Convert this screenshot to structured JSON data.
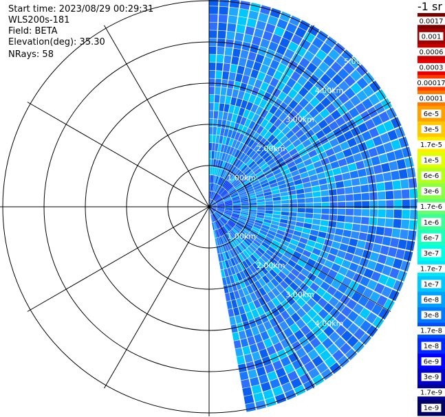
{
  "info": {
    "start_time": "Start time: 2023/08/29 00:29:31",
    "instrument": "WLS200s-181",
    "field": "Field: BETA",
    "elevation": "Elevation(deg): 35.30",
    "nrays": "NRays: 58"
  },
  "colorbar": {
    "unit": "-1 sr",
    "labels": [
      "0.0017",
      "0.001",
      "0.0006",
      "0.0003",
      "0.00017",
      "0.0001",
      "6e-5",
      "3e-5",
      "1.7e-5",
      "1e-5",
      "6e-6",
      "3e-6",
      "1.7e-6",
      "1e-6",
      "6e-7",
      "3e-7",
      "1.7e-7",
      "1e-7",
      "6e-8",
      "3e-8",
      "1.7e-8",
      "1e-8",
      "6e-9",
      "3e-9",
      "1.7e-9",
      "1e-9"
    ],
    "colors": [
      "#7a0000",
      "#a00000",
      "#c80000",
      "#e60000",
      "#ff3c00",
      "#ff7800",
      "#ffa000",
      "#ffc800",
      "#ffee00",
      "#e0ff00",
      "#b4ff1e",
      "#8cff46",
      "#64ff6e",
      "#3cff96",
      "#1effbe",
      "#00ffe6",
      "#00e6ff",
      "#00c8ff",
      "#00a0ff",
      "#0078ff",
      "#0050ff",
      "#0028ff",
      "#0000ff",
      "#0000c8",
      "#000096",
      "#000064"
    ]
  },
  "chart_data": {
    "type": "heatmap",
    "projection": "polar PPI",
    "field": "BETA",
    "unit": "-1 sr",
    "ring_labels": [
      "1.00km",
      "2.00km",
      "3.00km",
      "4.00km",
      "5.00km"
    ],
    "range_rings_km": [
      1,
      2,
      3,
      4,
      5
    ],
    "azimuth_start_deg": 0,
    "azimuth_end_deg": 170,
    "nrays": 58,
    "dominant_value_range": [
      "1e-8",
      "1.7e-7"
    ]
  }
}
